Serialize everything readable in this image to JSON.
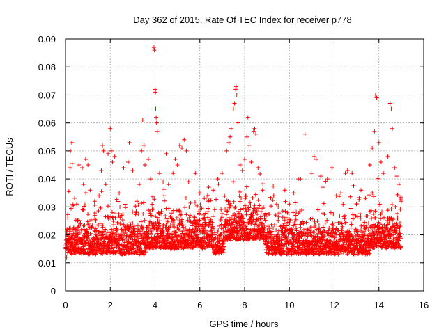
{
  "chart_data": {
    "type": "scatter",
    "title": "Day 362 of 2015, Rate Of TEC Index for receiver p778",
    "xlabel": "GPS time / hours",
    "ylabel": "ROTI / TECUs",
    "xlim": [
      0,
      16
    ],
    "ylim": [
      0,
      0.09
    ],
    "xticks": [
      0,
      2,
      4,
      6,
      8,
      10,
      12,
      14,
      16
    ],
    "xtick_labels": [
      "0",
      "2",
      "4",
      "6",
      "8",
      "10",
      "12",
      "14",
      "16"
    ],
    "yticks": [
      0,
      0.01,
      0.02,
      0.03,
      0.04,
      0.05,
      0.06,
      0.07,
      0.08,
      0.09
    ],
    "ytick_labels": [
      "0",
      "0.01",
      "0.02",
      "0.03",
      "0.04",
      "0.05",
      "0.06",
      "0.07",
      "0.08",
      "0.09"
    ],
    "grid": true,
    "marker": "+",
    "color": "#ff0000",
    "data_coverage_hours": [
      0,
      15
    ],
    "series": [
      {
        "name": "ROTI",
        "points": [
          [
            0.05,
            0.012
          ],
          [
            0.1,
            0.026
          ],
          [
            0.15,
            0.0355
          ],
          [
            0.2,
            0.044
          ],
          [
            0.22,
            0.05
          ],
          [
            0.28,
            0.053
          ],
          [
            0.3,
            0.0455
          ],
          [
            0.35,
            0.0305
          ],
          [
            0.5,
            0.031
          ],
          [
            0.6,
            0.045
          ],
          [
            0.75,
            0.044
          ],
          [
            0.8,
            0.038
          ],
          [
            0.9,
            0.047
          ],
          [
            1.0,
            0.045
          ],
          [
            1.1,
            0.036
          ],
          [
            1.3,
            0.032
          ],
          [
            1.5,
            0.034
          ],
          [
            1.6,
            0.043
          ],
          [
            1.65,
            0.052
          ],
          [
            1.7,
            0.05
          ],
          [
            1.8,
            0.038
          ],
          [
            1.9,
            0.049
          ],
          [
            2.0,
            0.058
          ],
          [
            2.05,
            0.05
          ],
          [
            2.1,
            0.046
          ],
          [
            2.2,
            0.048
          ],
          [
            2.4,
            0.035
          ],
          [
            2.6,
            0.044
          ],
          [
            2.8,
            0.046
          ],
          [
            2.85,
            0.053
          ],
          [
            3.0,
            0.043
          ],
          [
            3.2,
            0.032
          ],
          [
            3.3,
            0.038
          ],
          [
            3.4,
            0.05
          ],
          [
            3.45,
            0.061
          ],
          [
            3.5,
            0.052
          ],
          [
            3.55,
            0.045
          ],
          [
            3.7,
            0.047
          ],
          [
            3.8,
            0.04
          ],
          [
            3.95,
            0.087
          ],
          [
            3.97,
            0.086
          ],
          [
            4.0,
            0.072
          ],
          [
            4.02,
            0.071
          ],
          [
            4.03,
            0.065
          ],
          [
            4.05,
            0.062
          ],
          [
            4.07,
            0.06
          ],
          [
            4.1,
            0.057
          ],
          [
            4.2,
            0.042
          ],
          [
            4.4,
            0.034
          ],
          [
            4.5,
            0.049
          ],
          [
            4.6,
            0.038
          ],
          [
            4.8,
            0.042
          ],
          [
            4.9,
            0.047
          ],
          [
            5.0,
            0.045
          ],
          [
            5.1,
            0.052
          ],
          [
            5.2,
            0.051
          ],
          [
            5.3,
            0.054
          ],
          [
            5.4,
            0.05
          ],
          [
            5.5,
            0.039
          ],
          [
            5.8,
            0.042
          ],
          [
            6.0,
            0.035
          ],
          [
            6.2,
            0.033
          ],
          [
            6.4,
            0.037
          ],
          [
            6.6,
            0.036
          ],
          [
            6.8,
            0.04
          ],
          [
            7.0,
            0.042
          ],
          [
            7.2,
            0.05
          ],
          [
            7.3,
            0.053
          ],
          [
            7.35,
            0.055
          ],
          [
            7.4,
            0.058
          ],
          [
            7.5,
            0.065
          ],
          [
            7.55,
            0.067
          ],
          [
            7.6,
            0.072
          ],
          [
            7.62,
            0.073
          ],
          [
            7.65,
            0.07
          ],
          [
            7.7,
            0.06
          ],
          [
            7.8,
            0.045
          ],
          [
            7.9,
            0.043
          ],
          [
            8.0,
            0.047
          ],
          [
            8.1,
            0.055
          ],
          [
            8.15,
            0.062
          ],
          [
            8.2,
            0.052
          ],
          [
            8.3,
            0.046
          ],
          [
            8.4,
            0.057
          ],
          [
            8.45,
            0.058
          ],
          [
            8.5,
            0.056
          ],
          [
            8.6,
            0.044
          ],
          [
            8.8,
            0.036
          ],
          [
            9.3,
            0.034
          ],
          [
            9.5,
            0.03
          ],
          [
            9.8,
            0.036
          ],
          [
            10.0,
            0.031
          ],
          [
            10.2,
            0.035
          ],
          [
            10.4,
            0.04
          ],
          [
            10.5,
            0.04
          ],
          [
            10.7,
            0.056
          ],
          [
            11.0,
            0.042
          ],
          [
            11.1,
            0.048
          ],
          [
            11.2,
            0.047
          ],
          [
            11.4,
            0.041
          ],
          [
            11.5,
            0.037
          ],
          [
            11.7,
            0.04
          ],
          [
            11.9,
            0.044
          ],
          [
            12.1,
            0.034
          ],
          [
            12.3,
            0.035
          ],
          [
            12.5,
            0.042
          ],
          [
            12.6,
            0.043
          ],
          [
            12.8,
            0.042
          ],
          [
            13.0,
            0.031
          ],
          [
            13.2,
            0.036
          ],
          [
            13.4,
            0.033
          ],
          [
            13.6,
            0.045
          ],
          [
            13.7,
            0.051
          ],
          [
            13.8,
            0.057
          ],
          [
            13.85,
            0.07
          ],
          [
            13.9,
            0.069
          ],
          [
            14.0,
            0.053
          ],
          [
            14.1,
            0.046
          ],
          [
            14.2,
            0.042
          ],
          [
            14.4,
            0.048
          ],
          [
            14.5,
            0.067
          ],
          [
            14.55,
            0.065
          ],
          [
            14.6,
            0.058
          ],
          [
            14.7,
            0.044
          ],
          [
            14.8,
            0.041
          ],
          [
            14.9,
            0.038
          ],
          [
            15.0,
            0.032
          ]
        ]
      }
    ]
  }
}
